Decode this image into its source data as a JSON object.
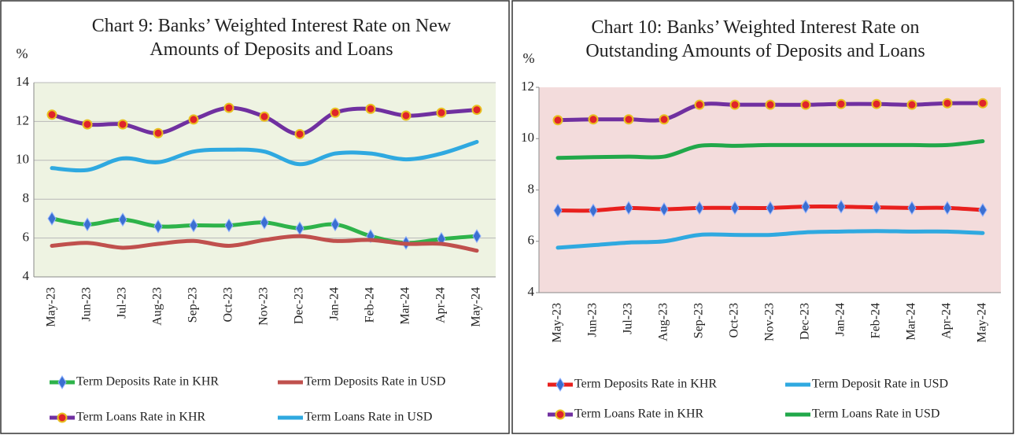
{
  "chart_data": [
    {
      "type": "line",
      "title": "Chart 9: Banks’ Weighted Interest Rate on New Amounts of Deposits and Loans",
      "ylabel": "%",
      "categories": [
        "May-23",
        "Jun-23",
        "Jul-23",
        "Aug-23",
        "Sep-23",
        "Oct-23",
        "Nov-23",
        "Dec-23",
        "Jan-24",
        "Feb-24",
        "Mar-24",
        "Apr-24",
        "May-24"
      ],
      "ylim": [
        4,
        14
      ],
      "yticks": [
        4,
        6,
        8,
        10,
        12,
        14
      ],
      "grid": true,
      "background": "#eef3e2",
      "legend": "bottom",
      "series": [
        {
          "name": "Term Deposits Rate in KHR",
          "color": "#2eb34a",
          "marker": "diamond",
          "marker_color": "#3b6fd1",
          "values": [
            7.0,
            6.7,
            6.95,
            6.6,
            6.65,
            6.65,
            6.8,
            6.5,
            6.7,
            6.1,
            5.75,
            5.95,
            6.1
          ]
        },
        {
          "name": "Term Deposits Rate in USD",
          "color": "#c0504d",
          "values": [
            5.6,
            5.75,
            5.5,
            5.7,
            5.85,
            5.6,
            5.9,
            6.1,
            5.85,
            5.9,
            5.7,
            5.7,
            5.35
          ]
        },
        {
          "name": "Term Loans Rate in KHR",
          "color": "#7030a0",
          "marker": "circle",
          "marker_color": "#e0242a",
          "values": [
            12.35,
            11.85,
            11.85,
            11.4,
            12.1,
            12.7,
            12.25,
            11.35,
            12.45,
            12.65,
            12.3,
            12.45,
            12.6
          ]
        },
        {
          "name": "Term Loans Rate in USD",
          "color": "#2fa9e0",
          "values": [
            9.6,
            9.5,
            10.1,
            9.9,
            10.45,
            10.55,
            10.45,
            9.8,
            10.35,
            10.35,
            10.05,
            10.35,
            10.95
          ]
        }
      ]
    },
    {
      "type": "line",
      "title": "Chart 10: Banks’ Weighted Interest Rate on Outstanding Amounts of Deposits and Loans",
      "ylabel": "%",
      "categories": [
        "May-23",
        "Jun-23",
        "Jul-23",
        "Aug-23",
        "Sep-23",
        "Oct-23",
        "Nov-23",
        "Dec-23",
        "Jan-24",
        "Feb-24",
        "Mar-24",
        "Apr-24",
        "May-24"
      ],
      "ylim": [
        4,
        12
      ],
      "yticks": [
        4,
        6,
        8,
        10,
        12
      ],
      "grid": false,
      "background": "#f3dcdc",
      "legend": "bottom",
      "series": [
        {
          "name": "Term Deposits Rate in KHR",
          "color": "#e8201e",
          "marker": "diamond",
          "marker_color": "#3b6fd1",
          "values": [
            7.2,
            7.2,
            7.3,
            7.25,
            7.3,
            7.3,
            7.3,
            7.35,
            7.35,
            7.32,
            7.3,
            7.3,
            7.22
          ]
        },
        {
          "name": "Term Deposit Rate in USD",
          "color": "#2fa9e0",
          "values": [
            5.75,
            5.85,
            5.95,
            6.0,
            6.25,
            6.25,
            6.25,
            6.35,
            6.38,
            6.4,
            6.38,
            6.38,
            6.32
          ]
        },
        {
          "name": "Term Loans Rate in KHR",
          "color": "#7030a0",
          "marker": "circle",
          "marker_color": "#e0242a",
          "values": [
            10.72,
            10.75,
            10.75,
            10.75,
            11.32,
            11.32,
            11.32,
            11.32,
            11.35,
            11.35,
            11.32,
            11.38,
            11.38
          ]
        },
        {
          "name": "Term Loans Rate in USD",
          "color": "#21a84a",
          "values": [
            9.25,
            9.28,
            9.3,
            9.3,
            9.72,
            9.72,
            9.75,
            9.75,
            9.75,
            9.75,
            9.75,
            9.75,
            9.9
          ]
        }
      ]
    }
  ]
}
